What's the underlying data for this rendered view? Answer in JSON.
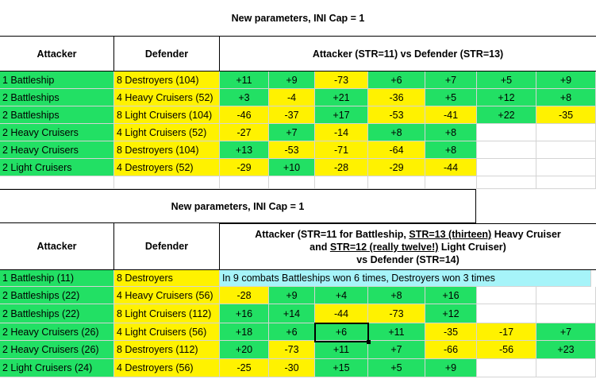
{
  "table1": {
    "title": "New parameters, INI Cap = 1",
    "header": {
      "attacker": "Attacker",
      "defender": "Defender",
      "results": "Attacker (STR=11) vs Defender (STR=13)"
    },
    "rows": [
      {
        "attacker": "1 Battleship",
        "defender": "8 Destroyers (104)",
        "values": [
          "+11",
          "+9",
          "-73",
          "+6",
          "+7",
          "+5",
          "+9"
        ]
      },
      {
        "attacker": "2 Battleships",
        "defender": "4 Heavy Cruisers (52)",
        "values": [
          "+3",
          "-4",
          "+21",
          "-36",
          "+5",
          "+12",
          "+8"
        ]
      },
      {
        "attacker": "2 Battleships",
        "defender": "8 Light Cruisers (104)",
        "values": [
          "-46",
          "-37",
          "+17",
          "-53",
          "-41",
          "+22",
          "-35"
        ]
      },
      {
        "attacker": "2 Heavy Cruisers",
        "defender": "4 Light Cruisers (52)",
        "values": [
          "-27",
          "+7",
          "-14",
          "+8",
          "+8"
        ]
      },
      {
        "attacker": "2 Heavy Cruisers",
        "defender": "8 Destroyers (104)",
        "values": [
          "+13",
          "-53",
          "-71",
          "-64",
          "+8"
        ]
      },
      {
        "attacker": "2 Light Cruisers",
        "defender": "4 Destroyers (52)",
        "values": [
          "-29",
          "+10",
          "-28",
          "-29",
          "-44"
        ]
      }
    ]
  },
  "table2": {
    "title": "New parameters, INI Cap = 1",
    "header": {
      "attacker": "Attacker",
      "defender": "Defender",
      "line1_a": "Attacker (STR=11 for Battleship, ",
      "line1_u": "STR=13 (thirteen)",
      "line1_b": " Heavy Cruiser",
      "line2_a": "and ",
      "line2_u": "STR=12 (really twelve!)",
      "line2_b": " Light Cruiser)",
      "line3": "vs Defender (STR=14)"
    },
    "rows": [
      {
        "attacker": "1 Battleship (11)",
        "defender": "8 Destroyers",
        "note": "In 9 combats Battleships won 6 times, Destroyers won 3 times",
        "values": []
      },
      {
        "attacker": "2 Battleships (22)",
        "defender": "4 Heavy Cruisers (56)",
        "values": [
          "-28",
          "+9",
          "+4",
          "+8",
          "+16"
        ]
      },
      {
        "attacker": "2 Battleships (22)",
        "defender": "8 Light Cruisers (112)",
        "values": [
          "+16",
          "+14",
          "-44",
          "-73",
          "+12"
        ]
      },
      {
        "attacker": "2 Heavy Cruisers (26)",
        "defender": "4 Light Cruisers (56)",
        "values": [
          "+18",
          "+6",
          "+6",
          "+11",
          "-35",
          "-17",
          "+7"
        ]
      },
      {
        "attacker": "2 Heavy Cruisers (26)",
        "defender": "8 Destroyers (112)",
        "values": [
          "+20",
          "-73",
          "+11",
          "+7",
          "-66",
          "-56",
          "+23"
        ]
      },
      {
        "attacker": "2 Light Cruisers (24)",
        "defender": "4 Destroyers (56)",
        "values": [
          "-25",
          "-30",
          "+15",
          "+5",
          "+9"
        ]
      }
    ]
  },
  "colors": {
    "positive": "#22e064",
    "negative": "#fff200",
    "note": "#a6f4f9",
    "grid": "#d4d4d4"
  }
}
